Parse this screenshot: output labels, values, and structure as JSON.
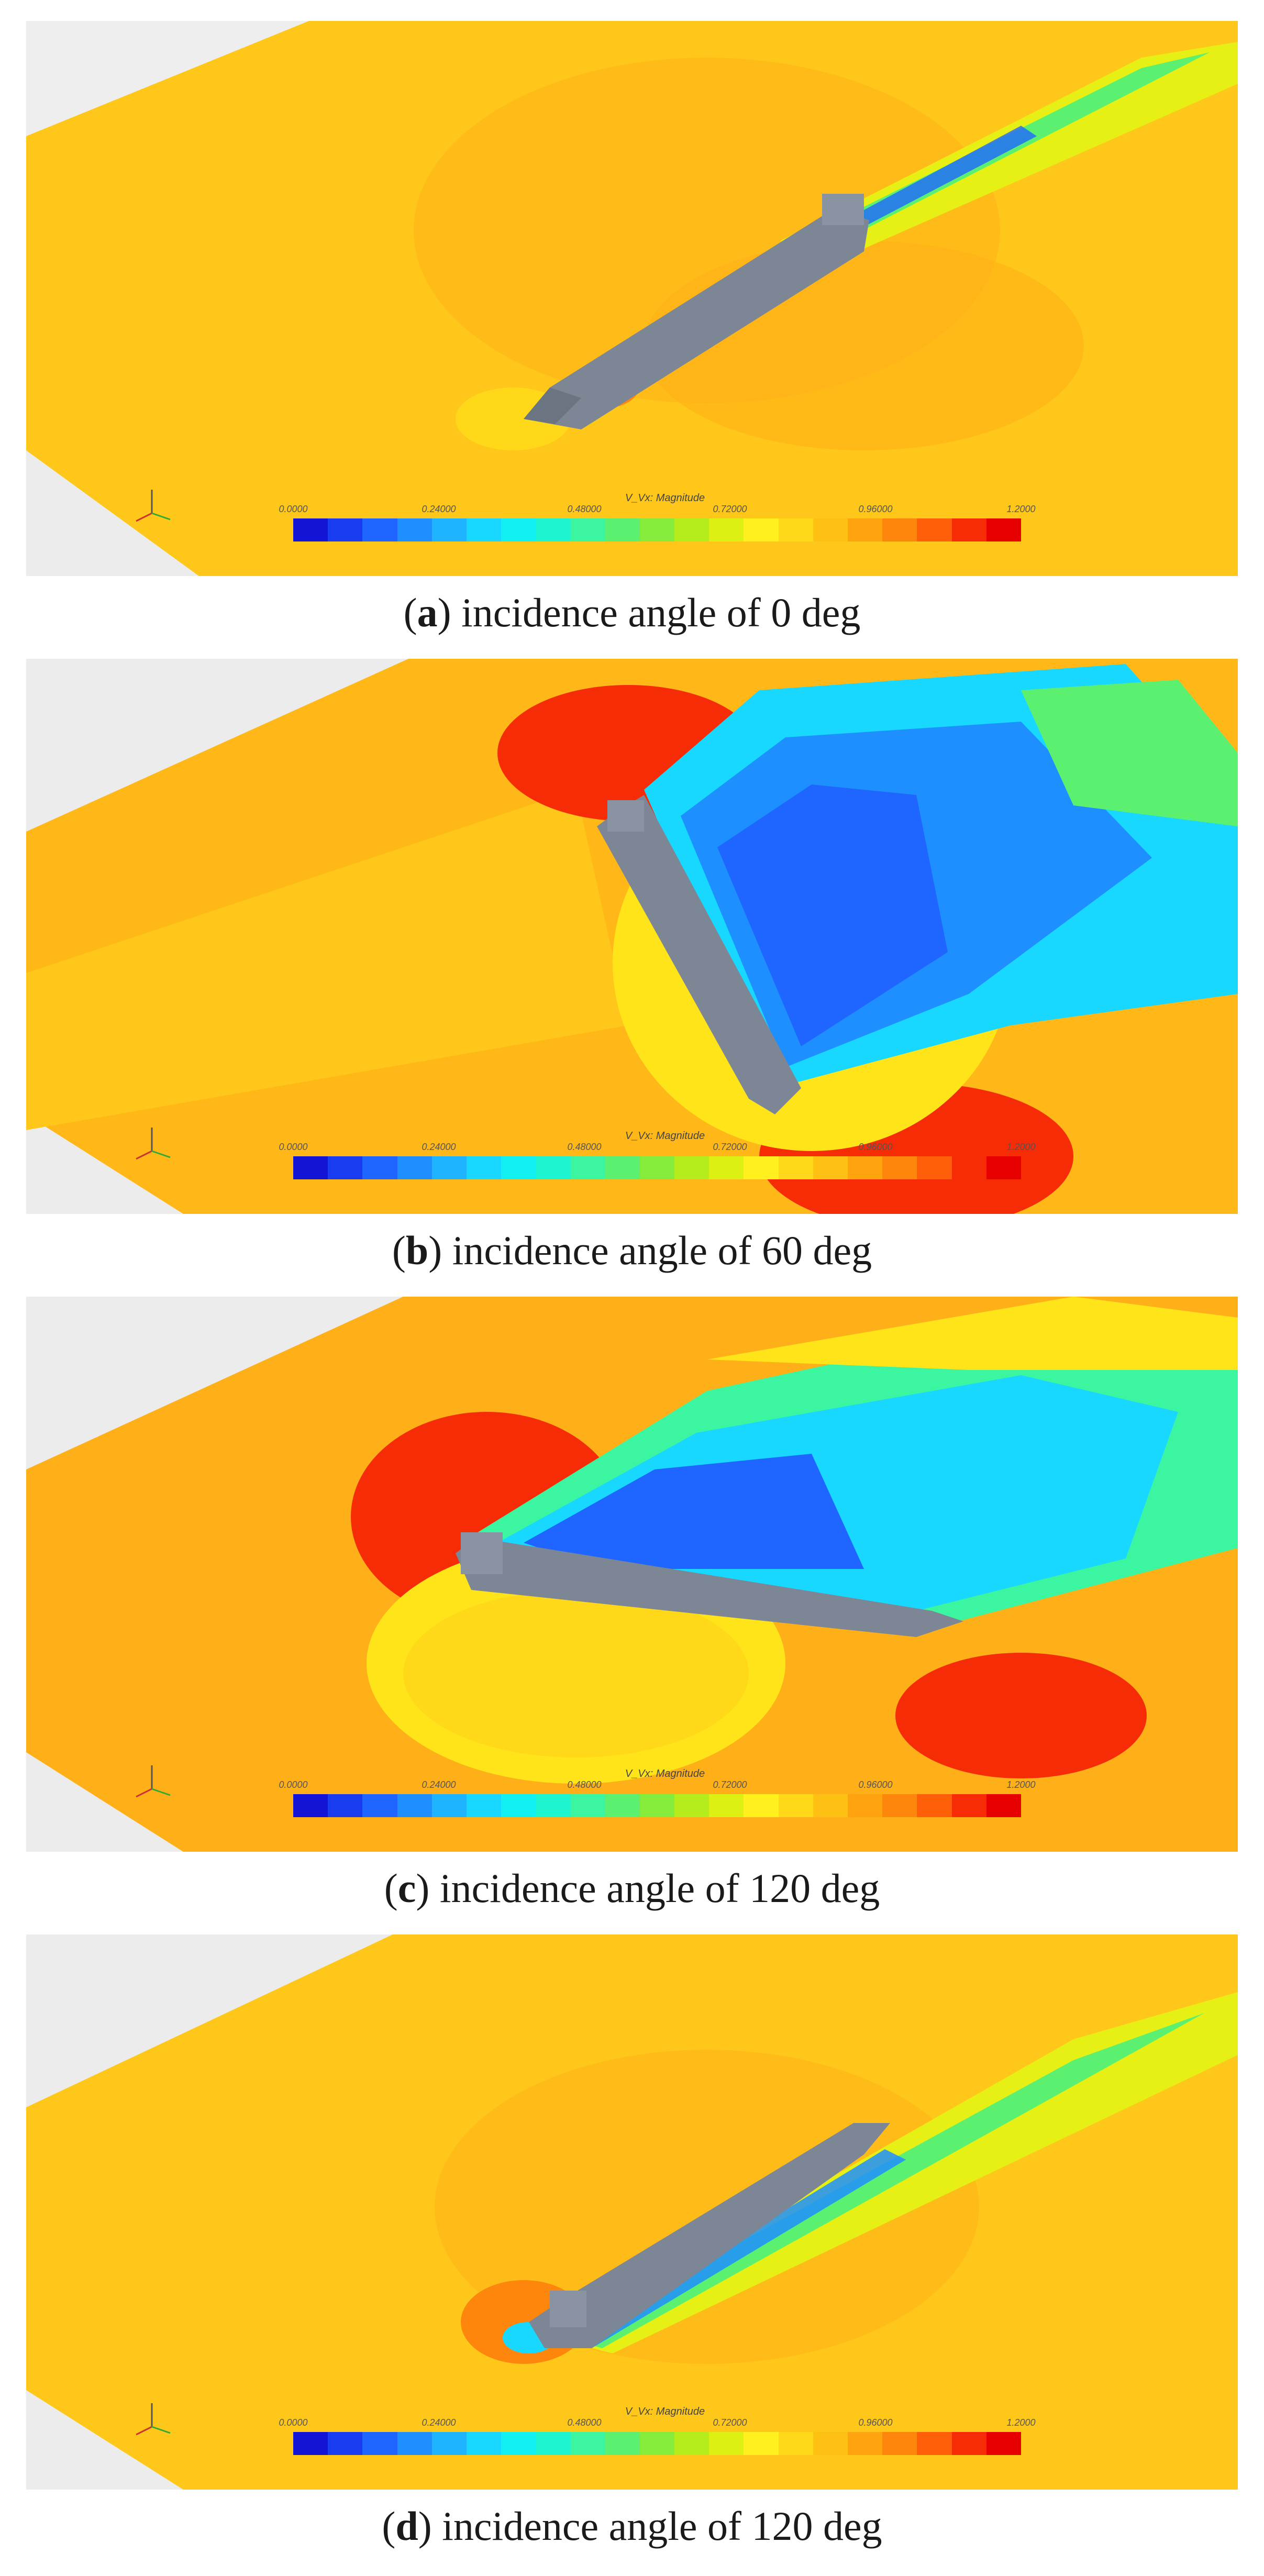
{
  "figure": {
    "legend_title": "V_Vx: Magnitude",
    "legend_ticks": [
      "0.0000",
      "0.24000",
      "0.48000",
      "0.72000",
      "0.96000",
      "1.2000"
    ],
    "colormap": [
      "#1414d6",
      "#1a3cf0",
      "#1e66ff",
      "#1f8fff",
      "#1eb4ff",
      "#19d8ff",
      "#13f0f2",
      "#1cf5cf",
      "#3cf5a0",
      "#5cf070",
      "#86ec3c",
      "#b4ec1c",
      "#dcf014",
      "#fff01e",
      "#ffd81a",
      "#ffc014",
      "#ffa30f",
      "#ff860c",
      "#ff5f08",
      "#f52c05",
      "#e60000"
    ],
    "panels": [
      {
        "id": "a",
        "label_letter": "a",
        "caption": "incidence angle of 0 deg"
      },
      {
        "id": "b",
        "label_letter": "b",
        "caption": "incidence angle of 60 deg"
      },
      {
        "id": "c",
        "label_letter": "c",
        "caption": "incidence angle of 120 deg"
      },
      {
        "id": "d",
        "label_letter": "d",
        "caption": "incidence angle of 120 deg"
      }
    ]
  }
}
